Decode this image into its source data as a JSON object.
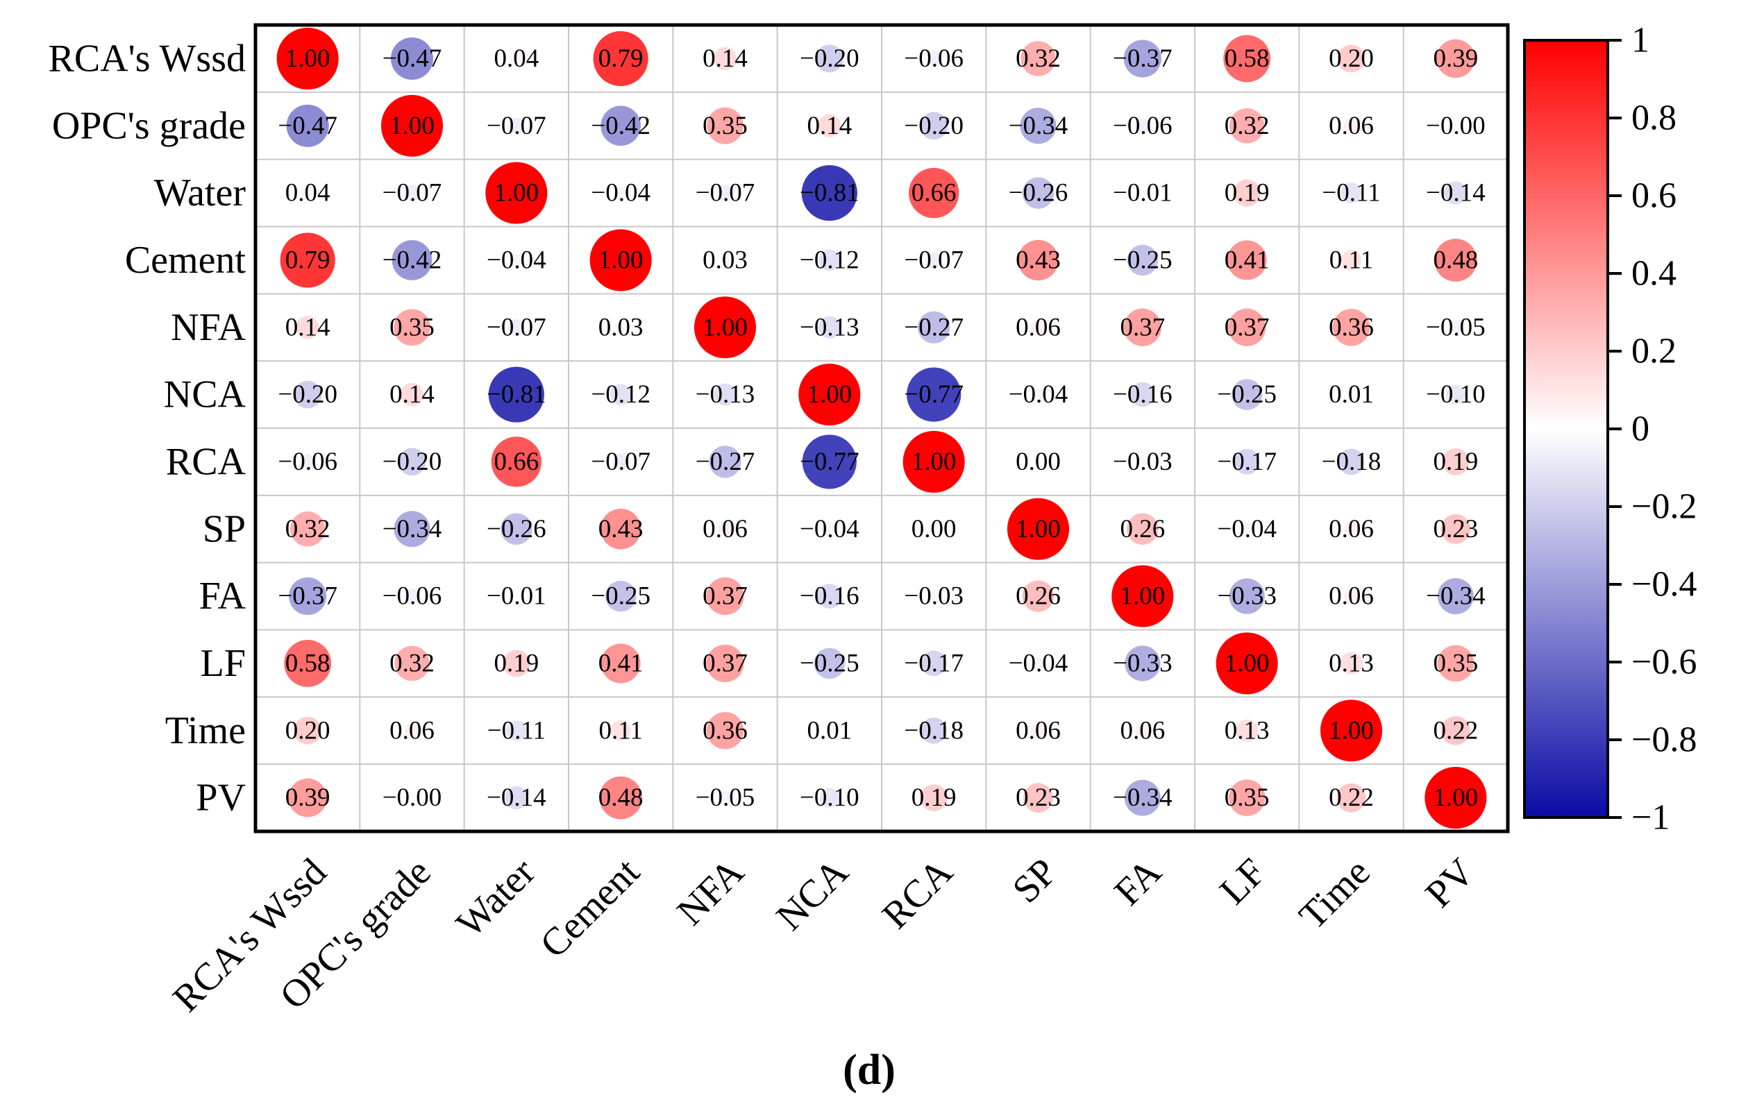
{
  "chart_data": {
    "type": "heatmap",
    "style": "circle-correlation-matrix",
    "variables": [
      "RCA's Wssd",
      "OPC's grade",
      "Water",
      "Cement",
      "NFA",
      "NCA",
      "RCA",
      "SP",
      "FA",
      "LF",
      "Time",
      "PV"
    ],
    "matrix": [
      [
        1.0,
        -0.47,
        0.04,
        0.79,
        0.14,
        -0.2,
        -0.06,
        0.32,
        -0.37,
        0.58,
        0.2,
        0.39
      ],
      [
        -0.47,
        1.0,
        -0.07,
        -0.42,
        0.35,
        0.14,
        -0.2,
        -0.34,
        -0.06,
        0.32,
        0.06,
        -0.0
      ],
      [
        0.04,
        -0.07,
        1.0,
        -0.04,
        -0.07,
        -0.81,
        0.66,
        -0.26,
        -0.01,
        0.19,
        -0.11,
        -0.14
      ],
      [
        0.79,
        -0.42,
        -0.04,
        1.0,
        0.03,
        -0.12,
        -0.07,
        0.43,
        -0.25,
        0.41,
        0.11,
        0.48
      ],
      [
        0.14,
        0.35,
        -0.07,
        0.03,
        1.0,
        -0.13,
        -0.27,
        0.06,
        0.37,
        0.37,
        0.36,
        -0.05
      ],
      [
        -0.2,
        0.14,
        -0.81,
        -0.12,
        -0.13,
        1.0,
        -0.77,
        -0.04,
        -0.16,
        -0.25,
        0.01,
        -0.1
      ],
      [
        -0.06,
        -0.2,
        0.66,
        -0.07,
        -0.27,
        -0.77,
        1.0,
        0.0,
        -0.03,
        -0.17,
        -0.18,
        0.19
      ],
      [
        0.32,
        -0.34,
        -0.26,
        0.43,
        0.06,
        -0.04,
        0.0,
        1.0,
        0.26,
        -0.04,
        0.06,
        0.23
      ],
      [
        -0.37,
        -0.06,
        -0.01,
        -0.25,
        0.37,
        -0.16,
        -0.03,
        0.26,
        1.0,
        -0.33,
        0.06,
        -0.34
      ],
      [
        0.58,
        0.32,
        0.19,
        0.41,
        0.37,
        -0.25,
        -0.17,
        -0.04,
        -0.33,
        1.0,
        0.13,
        0.35
      ],
      [
        0.2,
        0.06,
        -0.11,
        0.11,
        0.36,
        0.01,
        -0.18,
        0.06,
        0.06,
        0.13,
        1.0,
        0.22
      ],
      [
        0.39,
        -0.0,
        -0.14,
        0.48,
        -0.05,
        -0.1,
        0.19,
        0.23,
        -0.34,
        0.35,
        0.22,
        1.0
      ]
    ],
    "cell_labels": [
      [
        "1.00",
        "−0.47",
        "0.04",
        "0.79",
        "0.14",
        "−0.20",
        "−0.06",
        "0.32",
        "−0.37",
        "0.58",
        "0.20",
        "0.39"
      ],
      [
        "−0.47",
        "1.00",
        "−0.07",
        "−0.42",
        "0.35",
        "0.14",
        "−0.20",
        "−0.34",
        "−0.06",
        "0.32",
        "0.06",
        "−0.00"
      ],
      [
        "0.04",
        "−0.07",
        "1.00",
        "−0.04",
        "−0.07",
        "−0.81",
        "0.66",
        "−0.26",
        "−0.01",
        "0.19",
        "−0.11",
        "−0.14"
      ],
      [
        "0.79",
        "−0.42",
        "−0.04",
        "1.00",
        "0.03",
        "−0.12",
        "−0.07",
        "0.43",
        "−0.25",
        "0.41",
        "0.11",
        "0.48"
      ],
      [
        "0.14",
        "0.35",
        "−0.07",
        "0.03",
        "1.00",
        "−0.13",
        "−0.27",
        "0.06",
        "0.37",
        "0.37",
        "0.36",
        "−0.05"
      ],
      [
        "−0.20",
        "0.14",
        "−0.81",
        "−0.12",
        "−0.13",
        "1.00",
        "−0.77",
        "−0.04",
        "−0.16",
        "−0.25",
        "0.01",
        "−0.10"
      ],
      [
        "−0.06",
        "−0.20",
        "0.66",
        "−0.07",
        "−0.27",
        "−0.77",
        "1.00",
        "0.00",
        "−0.03",
        "−0.17",
        "−0.18",
        "0.19"
      ],
      [
        "0.32",
        "−0.34",
        "−0.26",
        "0.43",
        "0.06",
        "−0.04",
        "0.00",
        "1.00",
        "0.26",
        "−0.04",
        "0.06",
        "0.23"
      ],
      [
        "−0.37",
        "−0.06",
        "−0.01",
        "−0.25",
        "0.37",
        "−0.16",
        "−0.03",
        "0.26",
        "1.00",
        "−0.33",
        "0.06",
        "−0.34"
      ],
      [
        "0.58",
        "0.32",
        "0.19",
        "0.41",
        "0.37",
        "−0.25",
        "−0.17",
        "−0.04",
        "−0.33",
        "1.00",
        "0.13",
        "0.35"
      ],
      [
        "0.20",
        "0.06",
        "−0.11",
        "0.11",
        "0.36",
        "0.01",
        "−0.18",
        "0.06",
        "0.06",
        "0.13",
        "1.00",
        "0.22"
      ],
      [
        "0.39",
        "−0.00",
        "−0.14",
        "0.48",
        "−0.05",
        "−0.10",
        "0.19",
        "0.23",
        "−0.34",
        "0.35",
        "0.22",
        "1.00"
      ]
    ],
    "colorbar": {
      "range": [
        -1,
        1
      ],
      "ticks": [
        1,
        0.8,
        0.6,
        0.4,
        0.2,
        0,
        -0.2,
        -0.4,
        -0.6,
        -0.8,
        -1
      ],
      "tick_labels": [
        "1",
        "0.8",
        "0.6",
        "0.4",
        "0.2",
        "0",
        "−0.2",
        "−0.4",
        "−0.6",
        "−0.8",
        "−1"
      ],
      "colors": {
        "negative": "#0a0aa5",
        "zero": "#ffffff",
        "positive": "#ff0000"
      }
    },
    "caption": "(d)"
  }
}
